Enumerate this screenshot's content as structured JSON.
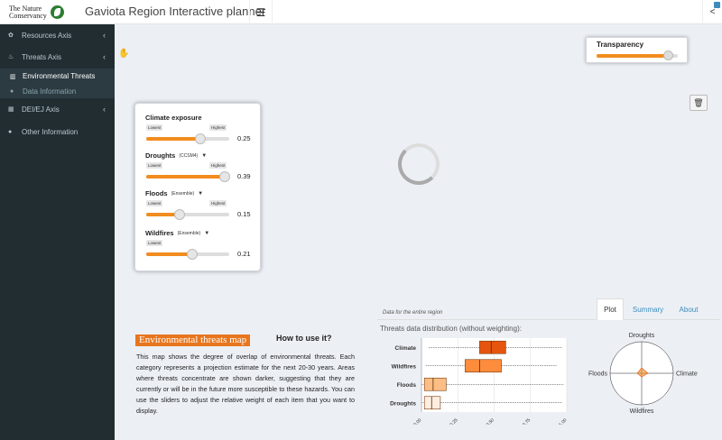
{
  "header": {
    "logo_text": "The Nature Conservancy",
    "app_title": "Gaviota Region Interactive planner",
    "menu_icon": "hamburger-icon",
    "share_icon": "share-icon"
  },
  "sidebar": {
    "items": [
      {
        "label": "Resources Axis",
        "icon": "leaf-icon"
      },
      {
        "label": "Threats Axis",
        "icon": "fire-icon"
      },
      {
        "label": "Environmental Threats",
        "icon": "map-icon"
      },
      {
        "label": "Data Information",
        "icon": "info-icon"
      },
      {
        "label": "DEI/EJ Axis",
        "icon": "people-icon"
      },
      {
        "label": "Other Information",
        "icon": "info-icon"
      }
    ]
  },
  "transparency": {
    "label": "Transparency",
    "value": 0.88
  },
  "sliders": [
    {
      "name": "Climate exposure",
      "sub": "",
      "has_caret": false,
      "low": "Lowest",
      "high": "Highest",
      "value": "0.25",
      "position": 0.65
    },
    {
      "name": "Droughts",
      "sub": "(CCSM4)",
      "has_caret": true,
      "low": "Lowest",
      "high": "Highest",
      "value": "0.39",
      "position": 0.95
    },
    {
      "name": "Floods",
      "sub": "(Ensemble)",
      "has_caret": true,
      "low": "Lowest",
      "high": "Highest",
      "value": "0.15",
      "position": 0.4
    },
    {
      "name": "Wildfires",
      "sub": "(Ensemble)",
      "has_caret": true,
      "low": "Lowest",
      "high": "",
      "value": "0.21",
      "position": 0.55
    }
  ],
  "info": {
    "title": "Environmental threats map",
    "howto": "How to use it?",
    "description": "This map shows the degree of overlap of environmental threats. Each category represents a projection estimate for the next 20-30 years. Areas where threats concentrate are shown darker, suggesting that they are currently or will be in the future more susceptible to these hazards. You can use the sliders to adjust the relative weight of each item that you want to display."
  },
  "tabs": [
    {
      "label": "Plot",
      "active": true
    },
    {
      "label": "Summary",
      "active": false
    },
    {
      "label": "About",
      "active": false
    }
  ],
  "region_note": "Data for the entire region",
  "chart_data": [
    {
      "type": "boxplot",
      "title": "Threats data distribution (without weighting):",
      "categories": [
        "Climate",
        "Wildfires",
        "Floods",
        "Droughts"
      ],
      "x_ticks": [
        "0.00",
        "0.25",
        "0.50",
        "0.75",
        "1.00"
      ],
      "xlim": [
        0,
        1
      ],
      "boxes": [
        {
          "q1": 0.4,
          "median": 0.48,
          "q3": 0.58,
          "wlow": 0.05,
          "whigh": 0.97,
          "color": "#e6550d"
        },
        {
          "q1": 0.3,
          "median": 0.4,
          "q3": 0.55,
          "wlow": 0.03,
          "whigh": 0.93,
          "color": "#fd8d3c"
        },
        {
          "q1": 0.02,
          "median": 0.08,
          "q3": 0.17,
          "wlow": 0.0,
          "whigh": 0.98,
          "color": "#fdbe85"
        },
        {
          "q1": 0.02,
          "median": 0.07,
          "q3": 0.13,
          "wlow": 0.0,
          "whigh": 0.97,
          "color": "#feedde"
        }
      ]
    },
    {
      "type": "radar",
      "axes": [
        "Droughts",
        "Climate",
        "Wildfires",
        "Floods"
      ]
    }
  ]
}
